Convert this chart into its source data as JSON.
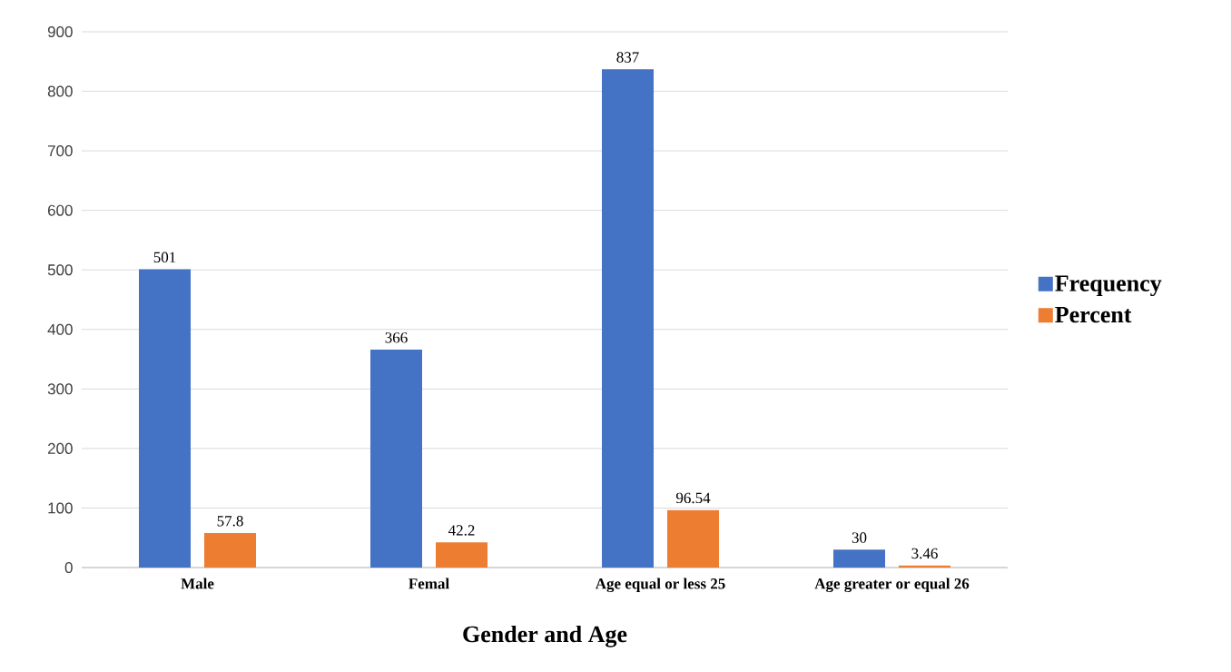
{
  "chart_data": {
    "type": "bar",
    "xlabel": "Gender and Age",
    "categories": [
      "Male",
      "Femal",
      "Age equal or less 25",
      "Age greater or equal 26"
    ],
    "series": [
      {
        "name": "Frequency",
        "color": "#4472c4",
        "values": [
          501,
          366,
          837,
          30
        ]
      },
      {
        "name": "Percent",
        "color": "#ed7d31",
        "values": [
          57.8,
          42.2,
          96.54,
          3.46
        ]
      }
    ],
    "ylim": [
      0,
      900
    ],
    "yticks": [
      0,
      100,
      200,
      300,
      400,
      500,
      600,
      700,
      800,
      900
    ],
    "grid": "y",
    "legend": "right",
    "data_labels": true
  }
}
